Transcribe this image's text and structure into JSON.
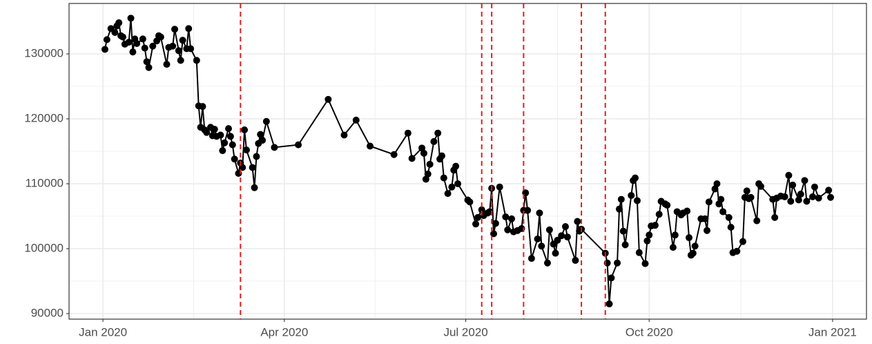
{
  "chart_data": {
    "type": "line",
    "x": [
      18263,
      18264,
      18266,
      18268,
      18269,
      18270,
      18271,
      18272,
      18273,
      18275,
      18276,
      18277,
      18278,
      18279,
      18282,
      18283,
      18284,
      18285,
      18287,
      18289,
      18290,
      18291,
      18294,
      18295,
      18297,
      18298,
      18300,
      18301,
      18302,
      18304,
      18305,
      18306,
      18309,
      18310,
      18311,
      18312,
      18313,
      18314,
      18316,
      18317,
      18318,
      18319,
      18321,
      18322,
      18323,
      18325,
      18326,
      18327,
      18328,
      18330,
      18331,
      18332,
      18333,
      18334,
      18337,
      18338,
      18339,
      18340,
      18341,
      18342,
      18344,
      18348,
      18360,
      18375,
      18383,
      18389,
      18396,
      18408,
      18415,
      18417,
      18422,
      18423,
      18424,
      18425,
      18426,
      18428,
      18430,
      18431,
      18432,
      18433,
      18435,
      18437,
      18438,
      18439,
      18440,
      18445,
      18446,
      18449,
      18450,
      18452,
      18453,
      18455,
      18456,
      18457,
      18458,
      18459,
      18461,
      18464,
      18465,
      18467,
      18468,
      18470,
      18472,
      18473,
      18474,
      18475,
      18477,
      18480,
      18481,
      18482,
      18485,
      18486,
      18488,
      18489,
      18490,
      18492,
      18494,
      18495,
      18499,
      18500,
      18501,
      18502,
      18514,
      18515,
      18516,
      18517,
      18520,
      18521,
      18522,
      18523,
      18524,
      18527,
      18528,
      18529,
      18530,
      18531,
      18534,
      18535,
      18536,
      18537,
      18539,
      18541,
      18542,
      18544,
      18545,
      18548,
      18549,
      18550,
      18552,
      18553,
      18555,
      18556,
      18557,
      18558,
      18559,
      18562,
      18564,
      18565,
      18566,
      18569,
      18570,
      18571,
      18572,
      18573,
      18576,
      18577,
      18578,
      18580,
      18583,
      18584,
      18585,
      18586,
      18587,
      18590,
      18591,
      18592,
      18598,
      18599,
      18600,
      18602,
      18604,
      18606,
      18607,
      18608,
      18611,
      18612,
      18614,
      18615,
      18618,
      18619,
      18621,
      18626,
      18627
    ],
    "series": [
      {
        "color": "#000000",
        "values": [
          130700,
          132200,
          133900,
          133300,
          134300,
          134800,
          132800,
          132600,
          131500,
          131800,
          135500,
          130300,
          132300,
          131600,
          132300,
          130900,
          128800,
          127900,
          131200,
          132000,
          132800,
          132600,
          128400,
          131000,
          131200,
          133800,
          130500,
          129000,
          132100,
          130800,
          133900,
          130800,
          129000,
          122000,
          118700,
          121900,
          118300,
          117900,
          118700,
          117400,
          118400,
          117300,
          117500,
          115100,
          116300,
          118500,
          117300,
          116000,
          113800,
          111600,
          113200,
          112500,
          118300,
          115200,
          112500,
          109400,
          114200,
          116200,
          117600,
          116700,
          119600,
          115600,
          116000,
          123000,
          117500,
          119800,
          115800,
          114500,
          117800,
          113900,
          115500,
          114700,
          110700,
          111500,
          113000,
          116500,
          117800,
          113800,
          114300,
          110900,
          108500,
          109500,
          112100,
          112700,
          110000,
          107500,
          107200,
          103800,
          104800,
          106000,
          105100,
          105500,
          105700,
          109300,
          102300,
          103900,
          109500,
          104900,
          102900,
          104600,
          102600,
          102800,
          103100,
          105900,
          108600,
          105900,
          98500,
          101500,
          105500,
          100400,
          97800,
          102900,
          100700,
          99300,
          101300,
          102000,
          103400,
          101800,
          98200,
          104200,
          102700,
          103000,
          99300,
          97800,
          91500,
          95500,
          97800,
          106100,
          107600,
          102700,
          100600,
          108200,
          110500,
          110900,
          107400,
          99400,
          97700,
          101200,
          102100,
          103500,
          103600,
          105300,
          107300,
          106900,
          106700,
          100200,
          102100,
          105700,
          105200,
          105500,
          105800,
          101700,
          99000,
          99300,
          100400,
          104600,
          104600,
          102800,
          107200,
          109200,
          110000,
          106900,
          107600,
          105700,
          104800,
          103300,
          99400,
          99600,
          101100,
          107900,
          108900,
          107700,
          107900,
          104300,
          110000,
          109600,
          107600,
          104800,
          107800,
          108100,
          108000,
          111300,
          107300,
          109800,
          107500,
          108400,
          110500,
          107300,
          108000,
          109500,
          107800,
          109000,
          107900
        ]
      }
    ],
    "xlim": [
      18245,
      18645
    ],
    "xticks": [
      {
        "value": 18262,
        "label": "Jan 2020"
      },
      {
        "value": 18353,
        "label": "Apr 2020"
      },
      {
        "value": 18444,
        "label": "Jul 2020"
      },
      {
        "value": 18536,
        "label": "Oct 2020"
      },
      {
        "value": 18628,
        "label": "Jan 2021"
      }
    ],
    "ylim": [
      89150,
      137770
    ],
    "yticks": [
      90000,
      100000,
      110000,
      120000,
      130000
    ],
    "vlines": [
      18331,
      18452,
      18457,
      18473,
      18502,
      18514
    ],
    "vline_color": "#e41a1c",
    "grid": true
  }
}
